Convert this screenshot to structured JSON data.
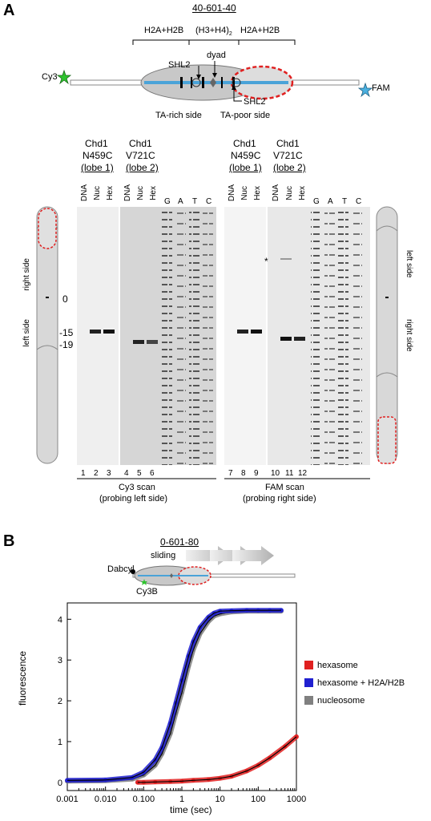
{
  "panel_a": {
    "letter": "A",
    "construct": "40-601-40",
    "h2a_h2b_left": "H2A+H2B",
    "h3_h4": "(H3+H4)",
    "h3_h4_sub": "2",
    "h2a_h2b_right": "H2A+H2B",
    "shl2_left": "SHL2",
    "dyad": "dyad",
    "shl2_right": "SHL2",
    "cy3": "Cy3",
    "fam": "FAM",
    "ta_rich": "TA-rich side",
    "ta_poor": "TA-poor side",
    "groups": [
      {
        "l1": "Chd1",
        "l2": "N459C",
        "l3": "(lobe 1)"
      },
      {
        "l1": "Chd1",
        "l2": "V721C",
        "l3": "(lobe 2)"
      },
      {
        "l1": "Chd1",
        "l2": "N459C",
        "l3": "(lobe 1)"
      },
      {
        "l1": "Chd1",
        "l2": "V721C",
        "l3": "(lobe 2)"
      }
    ],
    "lanes": [
      "DNA",
      "Nuc",
      "Hex",
      "G",
      "A",
      "T",
      "C",
      "DNA",
      "Nuc",
      "Hex",
      "G",
      "A",
      "T",
      "C"
    ],
    "lane_numbers": [
      "1",
      "2",
      "3",
      "4",
      "5",
      "6",
      "7",
      "8",
      "9",
      "10",
      "11",
      "12"
    ],
    "left_gel_side_top": "right side",
    "left_gel_side_bottom": "left side",
    "right_gel_side_top": "left side",
    "right_gel_side_bottom": "right side",
    "position_0": "0",
    "position_m15": "-15",
    "position_m19": "-19",
    "asterisk": "*",
    "scan_left_1": "Cy3 scan",
    "scan_left_2": "(probing left side)",
    "scan_right_1": "FAM scan",
    "scan_right_2": "(probing right side)"
  },
  "panel_b": {
    "letter": "B",
    "construct": "0-601-80",
    "sliding": "sliding",
    "dabcyl": "Dabcyl",
    "cy3b": "Cy3B",
    "chart_data": {
      "type": "scatter",
      "xlabel": "time (sec)",
      "ylabel": "fluorescence",
      "x_scale": "log",
      "xlim": [
        0.001,
        1000
      ],
      "ylim": [
        -0.2,
        4.4
      ],
      "x_ticks": [
        "0.001",
        "0.010",
        "0.100",
        "1",
        "10",
        "100",
        "1000"
      ],
      "y_ticks": [
        "0",
        "1",
        "2",
        "3",
        "4"
      ],
      "legend_position": "right",
      "series": [
        {
          "name": "hexasome",
          "color": "#e02020",
          "x": [
            0.07,
            0.1,
            0.2,
            0.5,
            1,
            2,
            5,
            10,
            20,
            50,
            100,
            200,
            500,
            1000
          ],
          "y": [
            0.0,
            0.0,
            0.01,
            0.02,
            0.03,
            0.05,
            0.07,
            0.1,
            0.15,
            0.28,
            0.42,
            0.6,
            0.88,
            1.12
          ]
        },
        {
          "name": "hexasome + H2A/H2B",
          "color": "#2020d0",
          "x": [
            0.001,
            0.01,
            0.05,
            0.1,
            0.2,
            0.3,
            0.5,
            0.7,
            1,
            1.5,
            2,
            3,
            5,
            7,
            10,
            20,
            50,
            100,
            200,
            400
          ],
          "y": [
            0.05,
            0.06,
            0.12,
            0.25,
            0.55,
            0.85,
            1.45,
            1.95,
            2.5,
            3.1,
            3.45,
            3.8,
            4.05,
            4.15,
            4.2,
            4.21,
            4.22,
            4.22,
            4.22,
            4.22
          ]
        },
        {
          "name": "nucleosome",
          "color": "#808080",
          "x": [
            0.001,
            0.01,
            0.05,
            0.1,
            0.2,
            0.3,
            0.5,
            0.7,
            1,
            1.5,
            2,
            3,
            5,
            7,
            10,
            20,
            50,
            100,
            200,
            400
          ],
          "y": [
            0.03,
            0.04,
            0.08,
            0.18,
            0.42,
            0.7,
            1.2,
            1.7,
            2.2,
            2.85,
            3.25,
            3.65,
            3.95,
            4.08,
            4.13,
            4.18,
            4.2,
            4.2,
            4.2,
            4.2
          ]
        }
      ]
    }
  }
}
